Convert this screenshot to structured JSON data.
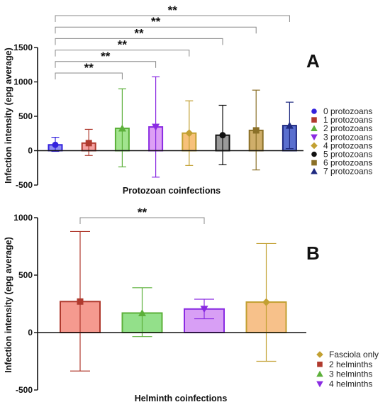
{
  "chart_data": [
    {
      "type": "bar",
      "panel_label": "A",
      "xlabel": "Protozoan coinfections",
      "ylabel": "Infection intensity (epg average)",
      "ylim": [
        -500,
        1500
      ],
      "yticks": [
        -500,
        0,
        500,
        1000,
        1500
      ],
      "grid": false,
      "legend_position": "right",
      "categories": [
        "0 protozoans",
        "1 protozoans",
        "2 protozoans",
        "3 protozoans",
        "4 protozoans",
        "5 protozoans",
        "6 protozoans",
        "7 protozoans"
      ],
      "series": [
        {
          "name": "0 protozoans",
          "value": 85,
          "err_low": -10,
          "err_high": 195,
          "color": "#3322dd",
          "fill": "#8f8ff2",
          "marker": "circle"
        },
        {
          "name": "1 protozoans",
          "value": 110,
          "err_low": -70,
          "err_high": 310,
          "color": "#b03a2e",
          "fill": "#f5a0a0",
          "marker": "square"
        },
        {
          "name": "2 protozoans",
          "value": 325,
          "err_low": -235,
          "err_high": 900,
          "color": "#5cb03a",
          "fill": "#a2e48e",
          "marker": "triangle-up"
        },
        {
          "name": "3 protozoans",
          "value": 345,
          "err_low": -385,
          "err_high": 1075,
          "color": "#8a2be2",
          "fill": "#dd9ff5",
          "marker": "triangle-down"
        },
        {
          "name": "4 protozoans",
          "value": 255,
          "err_low": -215,
          "err_high": 725,
          "color": "#c2a032",
          "fill": "#f7c17a",
          "marker": "diamond"
        },
        {
          "name": "5 protozoans",
          "value": 225,
          "err_low": -205,
          "err_high": 660,
          "color": "#111111",
          "fill": "#9a9a9a",
          "marker": "circle"
        },
        {
          "name": "6 protozoans",
          "value": 295,
          "err_low": -280,
          "err_high": 880,
          "color": "#8b7028",
          "fill": "#cfae6a",
          "marker": "square"
        },
        {
          "name": "7 protozoans",
          "value": 365,
          "err_low": 30,
          "err_high": 705,
          "color": "#1f2a80",
          "fill": "#5a6fcf",
          "marker": "triangle-up"
        }
      ],
      "significance": [
        {
          "from": 0,
          "to": 2,
          "label": "**"
        },
        {
          "from": 0,
          "to": 3,
          "label": "**"
        },
        {
          "from": 0,
          "to": 4,
          "label": "**"
        },
        {
          "from": 0,
          "to": 5,
          "label": "**"
        },
        {
          "from": 0,
          "to": 6,
          "label": "**"
        },
        {
          "from": 0,
          "to": 7,
          "label": "**"
        }
      ]
    },
    {
      "type": "bar",
      "panel_label": "B",
      "xlabel": "Helminth coinfections",
      "ylabel": "Infection intensity (epg average)",
      "ylim": [
        -500,
        1000
      ],
      "yticks": [
        -500,
        0,
        500,
        1000
      ],
      "grid": false,
      "legend_position": "bottom-right",
      "categories": [
        "2 helminths",
        "3 helminths",
        "4 helminths",
        "Fasciola only"
      ],
      "series": [
        {
          "name": "2 helminths",
          "value": 270,
          "err_low": -335,
          "err_high": 880,
          "color": "#b03a2e",
          "fill": "#f59a8f",
          "marker": "square"
        },
        {
          "name": "3 helminths",
          "value": 170,
          "err_low": -35,
          "err_high": 390,
          "color": "#5cb03a",
          "fill": "#93e08a",
          "marker": "triangle-up"
        },
        {
          "name": "4 helminths",
          "value": 205,
          "err_low": 120,
          "err_high": 290,
          "color": "#8a2be2",
          "fill": "#d89ff5",
          "marker": "triangle-down"
        },
        {
          "name": "Fasciola only",
          "value": 265,
          "err_low": -250,
          "err_high": 775,
          "color": "#c2a032",
          "fill": "#f7c18a",
          "marker": "diamond"
        }
      ],
      "legend_order": [
        "Fasciola only",
        "2 helminths",
        "3 helminths",
        "4 helminths"
      ],
      "significance": [
        {
          "from": 0,
          "to": 2,
          "label": "**"
        }
      ]
    }
  ]
}
